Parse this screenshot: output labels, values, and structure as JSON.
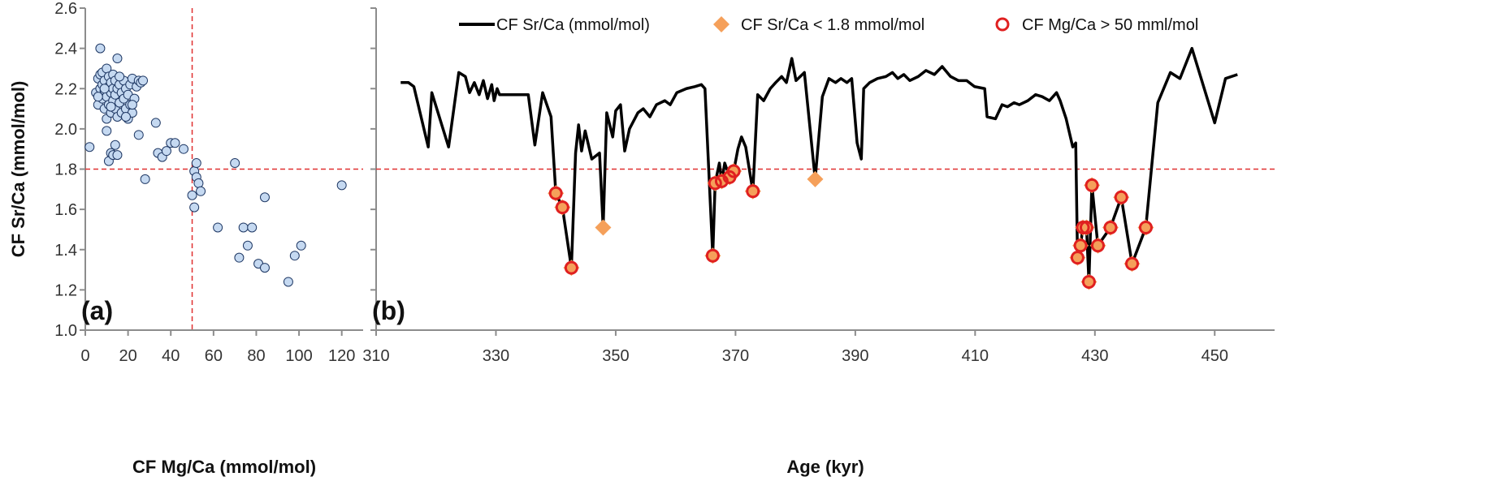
{
  "chart_data": [
    {
      "type": "scatter",
      "x_label": "CF Mg/Ca (mmol/mol)",
      "y_label": "CF Sr/Ca (mmol/mol)",
      "annotation": "(a)",
      "xlim": [
        0,
        130
      ],
      "xticks": [
        0,
        20,
        40,
        60,
        80,
        100,
        120
      ],
      "ylim": [
        1.0,
        2.6
      ],
      "yticks": [
        {
          "value": 1.0,
          "label": "1.0"
        },
        1.2,
        1.4,
        1.6,
        1.8,
        {
          "value": 2.0,
          "label": "2.0"
        },
        2.2,
        2.4,
        2.6
      ],
      "color": "#c5d9f1",
      "edge_color": "#1f3864",
      "reference_lines": [
        {
          "axis": "y",
          "value": 1.8,
          "color": "#e03030"
        },
        {
          "axis": "x",
          "value": 50,
          "color": "#e03030"
        }
      ],
      "x": [
        5,
        6,
        6,
        7,
        7,
        8,
        8,
        8,
        9,
        9,
        9,
        10,
        10,
        10,
        11,
        11,
        11,
        12,
        12,
        12,
        13,
        13,
        13,
        14,
        14,
        14,
        15,
        15,
        16,
        16,
        17,
        17,
        18,
        18,
        19,
        19,
        20,
        20,
        21,
        21,
        22,
        22,
        23,
        24,
        25,
        26,
        27,
        6,
        9,
        12,
        16,
        19,
        22,
        2,
        7,
        15,
        28,
        33,
        34,
        36,
        38,
        40,
        42,
        46,
        50,
        51,
        51,
        52,
        52,
        53,
        54,
        62,
        70,
        72,
        74,
        76,
        78,
        81,
        84,
        84,
        95,
        98,
        101,
        120,
        25,
        10,
        12,
        11,
        13,
        14,
        15
      ],
      "values": [
        2.18,
        2.25,
        2.12,
        2.2,
        2.27,
        2.15,
        2.22,
        2.28,
        2.1,
        2.19,
        2.24,
        2.05,
        2.16,
        2.3,
        2.12,
        2.21,
        2.26,
        2.08,
        2.18,
        2.23,
        2.14,
        2.2,
        2.27,
        2.1,
        2.17,
        2.24,
        2.06,
        2.2,
        2.13,
        2.22,
        2.08,
        2.18,
        2.15,
        2.24,
        2.1,
        2.2,
        2.05,
        2.17,
        2.12,
        2.22,
        2.08,
        2.25,
        2.15,
        2.21,
        2.24,
        2.23,
        2.24,
        2.16,
        2.2,
        2.11,
        2.26,
        2.06,
        2.12,
        1.91,
        2.4,
        2.35,
        1.75,
        2.03,
        1.88,
        1.86,
        1.89,
        1.93,
        1.93,
        1.9,
        1.67,
        1.79,
        1.61,
        1.83,
        1.76,
        1.73,
        1.69,
        1.51,
        1.83,
        1.36,
        1.51,
        1.42,
        1.51,
        1.33,
        1.31,
        1.66,
        1.24,
        1.37,
        1.42,
        1.72,
        1.97,
        1.99,
        1.88,
        1.84,
        1.87,
        1.92,
        1.87
      ]
    },
    {
      "type": "line",
      "x_label": "Age (kyr)",
      "annotation": "(b)",
      "xlim": [
        310,
        460
      ],
      "xticks": [
        310,
        330,
        350,
        370,
        390,
        410,
        430,
        450
      ],
      "ylim": [
        1.0,
        2.6
      ],
      "reference_lines": [
        {
          "axis": "y",
          "value": 1.8,
          "color": "#e03030"
        }
      ],
      "series": [
        {
          "name": "CF Sr/Ca (mmol/mol)",
          "color": "#000000",
          "marker": "none",
          "x": [
            314.1,
            315.4,
            316.3,
            318.7,
            319.3,
            322.1,
            323.8,
            324.9,
            325.6,
            326.4,
            327.2,
            327.9,
            328.6,
            329.3,
            329.7,
            330.2,
            330.6,
            332.7,
            335.4,
            336.5,
            337.8,
            339.2,
            340.0,
            341.1,
            342.6,
            343.3,
            343.8,
            344.3,
            344.9,
            346.0,
            347.3,
            347.9,
            348.5,
            349.5,
            350.0,
            350.8,
            351.5,
            352.3,
            353.7,
            354.6,
            355.7,
            356.8,
            358.2,
            359.1,
            360.2,
            361.8,
            363.2,
            364.3,
            364.9,
            366.2,
            366.6,
            367.3,
            367.7,
            368.2,
            369.0,
            369.7,
            370.4,
            371.0,
            371.7,
            372.9,
            373.7,
            374.7,
            375.8,
            376.7,
            377.7,
            378.5,
            379.4,
            380.1,
            381.5,
            383.3,
            384.5,
            385.6,
            386.7,
            387.6,
            388.6,
            389.4,
            390.3,
            391.0,
            391.4,
            392.4,
            393.7,
            395.1,
            396.2,
            397.1,
            398.1,
            399.1,
            400.5,
            401.8,
            403.2,
            404.5,
            405.9,
            407.2,
            408.6,
            409.9,
            411.6,
            412.0,
            413.4,
            414.5,
            415.4,
            416.5,
            417.4,
            418.8,
            420.1,
            421.2,
            422.4,
            423.6,
            424.2,
            425.2,
            426.3,
            426.8,
            427.1,
            427.6,
            428.0,
            428.6,
            429.0,
            429.5,
            430.5,
            432.6,
            434.4,
            436.2,
            438.5,
            440.5,
            442.6,
            444.2,
            446.2,
            450.0,
            451.8,
            453.8
          ],
          "values": [
            2.23,
            2.23,
            2.21,
            1.91,
            2.18,
            1.91,
            2.28,
            2.26,
            2.18,
            2.23,
            2.17,
            2.24,
            2.15,
            2.22,
            2.14,
            2.2,
            2.17,
            2.17,
            2.17,
            1.92,
            2.18,
            2.06,
            1.68,
            1.61,
            1.31,
            1.88,
            2.02,
            1.89,
            1.99,
            1.85,
            1.88,
            1.51,
            2.08,
            1.96,
            2.09,
            2.12,
            1.89,
            2.0,
            2.08,
            2.1,
            2.06,
            2.12,
            2.14,
            2.12,
            2.18,
            2.2,
            2.21,
            2.22,
            2.2,
            1.37,
            1.73,
            1.83,
            1.74,
            1.83,
            1.76,
            1.79,
            1.9,
            1.96,
            1.91,
            1.69,
            2.17,
            2.14,
            2.2,
            2.23,
            2.26,
            2.23,
            2.35,
            2.24,
            2.28,
            1.75,
            2.16,
            2.25,
            2.23,
            2.25,
            2.23,
            2.25,
            1.93,
            1.85,
            2.2,
            2.23,
            2.25,
            2.26,
            2.28,
            2.25,
            2.27,
            2.24,
            2.26,
            2.29,
            2.27,
            2.31,
            2.26,
            2.24,
            2.24,
            2.21,
            2.2,
            2.06,
            2.05,
            2.12,
            2.11,
            2.13,
            2.12,
            2.14,
            2.17,
            2.16,
            2.14,
            2.18,
            2.14,
            2.05,
            1.91,
            1.93,
            1.36,
            1.42,
            1.51,
            1.51,
            1.24,
            1.72,
            1.42,
            1.51,
            1.66,
            1.33,
            1.51,
            2.13,
            2.28,
            2.25,
            2.4,
            2.03,
            2.25,
            2.27
          ]
        },
        {
          "name": "CF Sr/Ca < 1.8 mmol/mol",
          "color": "#f5a05a",
          "marker": "diamond",
          "x": [
            340.0,
            341.1,
            342.6,
            347.9,
            366.2,
            366.6,
            367.7,
            369.0,
            369.7,
            372.9,
            383.3,
            427.1,
            427.6,
            428.0,
            428.6,
            429.0,
            429.5,
            430.5,
            432.6,
            434.4,
            436.2,
            438.5
          ],
          "values": [
            1.68,
            1.61,
            1.31,
            1.51,
            1.37,
            1.73,
            1.74,
            1.76,
            1.79,
            1.69,
            1.75,
            1.36,
            1.42,
            1.51,
            1.51,
            1.24,
            1.72,
            1.42,
            1.51,
            1.66,
            1.33,
            1.51
          ]
        },
        {
          "name": "CF Mg/Ca > 50 mml/mol",
          "color": "#e02020",
          "marker": "circle",
          "x": [
            340.0,
            341.1,
            342.6,
            366.2,
            366.6,
            367.7,
            369.0,
            369.7,
            372.9,
            427.1,
            427.6,
            428.0,
            428.6,
            429.0,
            429.5,
            430.5,
            432.6,
            434.4,
            436.2,
            438.5
          ],
          "values": [
            1.68,
            1.61,
            1.31,
            1.37,
            1.73,
            1.74,
            1.76,
            1.79,
            1.69,
            1.36,
            1.42,
            1.51,
            1.51,
            1.24,
            1.72,
            1.42,
            1.51,
            1.66,
            1.33,
            1.51
          ]
        }
      ]
    }
  ]
}
